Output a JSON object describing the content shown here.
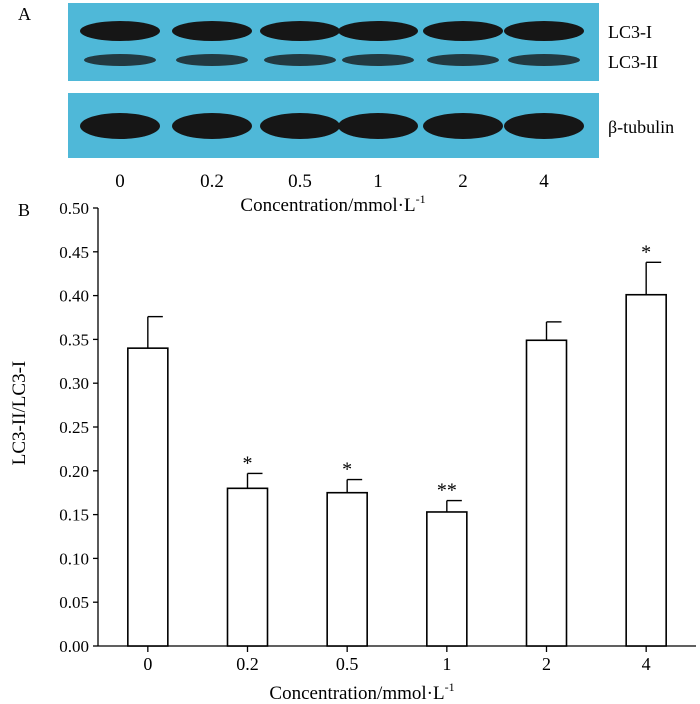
{
  "panel_a": {
    "label": "A",
    "band_labels": [
      "LC3-I",
      "LC3-II"
    ],
    "loading_label": "β-tubulin",
    "lanes": [
      "0",
      "0.2",
      "0.5",
      "1",
      "2",
      "4"
    ],
    "xlabel": "Concentration/mmol·L",
    "xlabel_sup": "-1",
    "colors": {
      "membrane": "#4fb8d8",
      "band": "#161616"
    }
  },
  "chart_data": {
    "type": "bar",
    "panel_label": "B",
    "categories": [
      "0",
      "0.2",
      "0.5",
      "1",
      "2",
      "4"
    ],
    "values": [
      0.34,
      0.18,
      0.175,
      0.153,
      0.349,
      0.401
    ],
    "errors": [
      0.036,
      0.017,
      0.015,
      0.013,
      0.021,
      0.037
    ],
    "significance": [
      "",
      "*",
      "*",
      "**",
      "",
      "*"
    ],
    "xlabel": "Concentration/mmol·L",
    "xlabel_sup": "-1",
    "ylabel": "LC3-II/LC3-I",
    "ylim": [
      0,
      0.5
    ],
    "yticks": [
      "0.00",
      "0.05",
      "0.10",
      "0.15",
      "0.20",
      "0.25",
      "0.30",
      "0.35",
      "0.40",
      "0.45",
      "0.50"
    ],
    "bar_fill": "#ffffff",
    "bar_stroke": "#000000",
    "grid": false
  }
}
